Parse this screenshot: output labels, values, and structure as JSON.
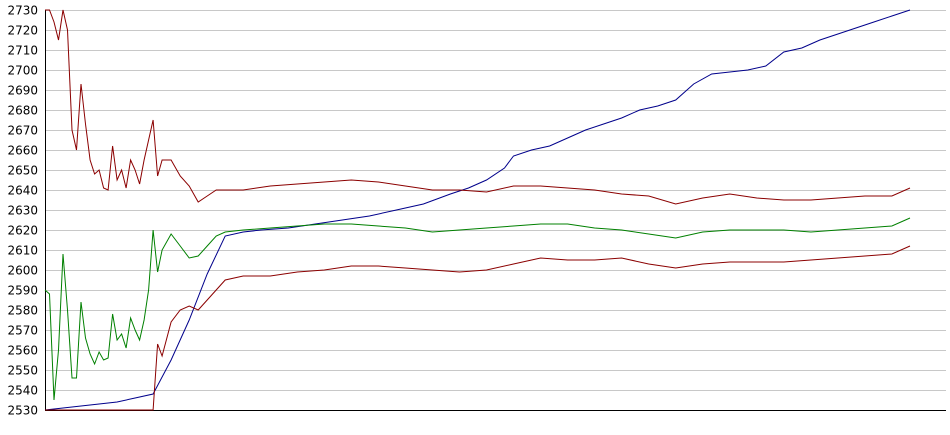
{
  "chart_data": {
    "type": "line",
    "title": "",
    "xlabel": "",
    "ylabel": "",
    "ylim": [
      2530,
      2730
    ],
    "xlim": [
      0,
      100
    ],
    "grid": true,
    "legend": "none",
    "yticks": [
      2530,
      2540,
      2550,
      2560,
      2570,
      2580,
      2590,
      2600,
      2610,
      2620,
      2630,
      2640,
      2650,
      2660,
      2670,
      2680,
      2690,
      2700,
      2710,
      2720,
      2730
    ],
    "series": [
      {
        "color": "#00008b",
        "points": [
          [
            0,
            2530
          ],
          [
            2,
            2531
          ],
          [
            4,
            2532
          ],
          [
            6,
            2533
          ],
          [
            8,
            2534
          ],
          [
            10,
            2536
          ],
          [
            12,
            2538
          ],
          [
            14,
            2555
          ],
          [
            16,
            2575
          ],
          [
            18,
            2598
          ],
          [
            20,
            2617
          ],
          [
            22,
            2619
          ],
          [
            24,
            2620
          ],
          [
            27,
            2621
          ],
          [
            30,
            2623
          ],
          [
            33,
            2625
          ],
          [
            36,
            2627
          ],
          [
            39,
            2630
          ],
          [
            42,
            2633
          ],
          [
            45,
            2638
          ],
          [
            47,
            2641
          ],
          [
            49,
            2645
          ],
          [
            51,
            2651
          ],
          [
            52,
            2657
          ],
          [
            54,
            2660
          ],
          [
            56,
            2662
          ],
          [
            58,
            2666
          ],
          [
            60,
            2670
          ],
          [
            62,
            2673
          ],
          [
            64,
            2676
          ],
          [
            66,
            2680
          ],
          [
            68,
            2682
          ],
          [
            70,
            2685
          ],
          [
            72,
            2693
          ],
          [
            74,
            2698
          ],
          [
            76,
            2699
          ],
          [
            78,
            2700
          ],
          [
            80,
            2702
          ],
          [
            82,
            2709
          ],
          [
            84,
            2711
          ],
          [
            86,
            2715
          ],
          [
            88,
            2718
          ],
          [
            90,
            2721
          ],
          [
            92,
            2724
          ],
          [
            94,
            2727
          ],
          [
            96,
            2730
          ]
        ]
      },
      {
        "color": "#8b0000",
        "points": [
          [
            0,
            2730
          ],
          [
            0.5,
            2730
          ],
          [
            1,
            2724
          ],
          [
            1.5,
            2715
          ],
          [
            2,
            2730
          ],
          [
            2.5,
            2720
          ],
          [
            3,
            2670
          ],
          [
            3.5,
            2660
          ],
          [
            4,
            2693
          ],
          [
            4.5,
            2673
          ],
          [
            5,
            2655
          ],
          [
            5.5,
            2648
          ],
          [
            6,
            2650
          ],
          [
            6.5,
            2641
          ],
          [
            7,
            2640
          ],
          [
            7.5,
            2662
          ],
          [
            8,
            2645
          ],
          [
            8.5,
            2650
          ],
          [
            9,
            2641
          ],
          [
            9.5,
            2655
          ],
          [
            10,
            2650
          ],
          [
            10.5,
            2643
          ],
          [
            11,
            2655
          ],
          [
            11.5,
            2665
          ],
          [
            12,
            2675
          ],
          [
            12.5,
            2647
          ],
          [
            13,
            2655
          ],
          [
            14,
            2655
          ],
          [
            15,
            2647
          ],
          [
            16,
            2642
          ],
          [
            17,
            2634
          ],
          [
            18,
            2637
          ],
          [
            19,
            2640
          ],
          [
            20,
            2640
          ],
          [
            22,
            2640
          ],
          [
            25,
            2642
          ],
          [
            28,
            2643
          ],
          [
            31,
            2644
          ],
          [
            34,
            2645
          ],
          [
            37,
            2644
          ],
          [
            40,
            2642
          ],
          [
            43,
            2640
          ],
          [
            46,
            2640
          ],
          [
            49,
            2639
          ],
          [
            52,
            2642
          ],
          [
            55,
            2642
          ],
          [
            58,
            2641
          ],
          [
            61,
            2640
          ],
          [
            64,
            2638
          ],
          [
            67,
            2637
          ],
          [
            70,
            2633
          ],
          [
            73,
            2636
          ],
          [
            76,
            2638
          ],
          [
            79,
            2636
          ],
          [
            82,
            2635
          ],
          [
            85,
            2635
          ],
          [
            88,
            2636
          ],
          [
            91,
            2637
          ],
          [
            94,
            2637
          ],
          [
            96,
            2641
          ]
        ]
      },
      {
        "color": "#008000",
        "points": [
          [
            0,
            2590
          ],
          [
            0.5,
            2588
          ],
          [
            1,
            2535
          ],
          [
            1.5,
            2560
          ],
          [
            2,
            2608
          ],
          [
            2.5,
            2580
          ],
          [
            3,
            2546
          ],
          [
            3.5,
            2546
          ],
          [
            4,
            2584
          ],
          [
            4.5,
            2566
          ],
          [
            5,
            2558
          ],
          [
            5.5,
            2553
          ],
          [
            6,
            2559
          ],
          [
            6.5,
            2555
          ],
          [
            7,
            2556
          ],
          [
            7.5,
            2578
          ],
          [
            8,
            2565
          ],
          [
            8.5,
            2568
          ],
          [
            9,
            2561
          ],
          [
            9.5,
            2576
          ],
          [
            10,
            2570
          ],
          [
            10.5,
            2565
          ],
          [
            11,
            2575
          ],
          [
            11.5,
            2590
          ],
          [
            12,
            2620
          ],
          [
            12.5,
            2599
          ],
          [
            13,
            2610
          ],
          [
            14,
            2618
          ],
          [
            15,
            2612
          ],
          [
            16,
            2606
          ],
          [
            17,
            2607
          ],
          [
            18,
            2612
          ],
          [
            19,
            2617
          ],
          [
            20,
            2619
          ],
          [
            22,
            2620
          ],
          [
            25,
            2621
          ],
          [
            28,
            2622
          ],
          [
            31,
            2623
          ],
          [
            34,
            2623
          ],
          [
            37,
            2622
          ],
          [
            40,
            2621
          ],
          [
            43,
            2619
          ],
          [
            46,
            2620
          ],
          [
            49,
            2621
          ],
          [
            52,
            2622
          ],
          [
            55,
            2623
          ],
          [
            58,
            2623
          ],
          [
            61,
            2621
          ],
          [
            64,
            2620
          ],
          [
            67,
            2618
          ],
          [
            70,
            2616
          ],
          [
            73,
            2619
          ],
          [
            76,
            2620
          ],
          [
            79,
            2620
          ],
          [
            82,
            2620
          ],
          [
            85,
            2619
          ],
          [
            88,
            2620
          ],
          [
            91,
            2621
          ],
          [
            94,
            2622
          ],
          [
            96,
            2626
          ]
        ]
      },
      {
        "color": "#8b0000",
        "points": [
          [
            0,
            2530
          ],
          [
            3,
            2530
          ],
          [
            6,
            2530
          ],
          [
            9,
            2530
          ],
          [
            12,
            2530
          ],
          [
            12.5,
            2563
          ],
          [
            13,
            2557
          ],
          [
            14,
            2574
          ],
          [
            15,
            2580
          ],
          [
            16,
            2582
          ],
          [
            17,
            2580
          ],
          [
            18,
            2585
          ],
          [
            19,
            2590
          ],
          [
            20,
            2595
          ],
          [
            22,
            2597
          ],
          [
            25,
            2597
          ],
          [
            28,
            2599
          ],
          [
            31,
            2600
          ],
          [
            34,
            2602
          ],
          [
            37,
            2602
          ],
          [
            40,
            2601
          ],
          [
            43,
            2600
          ],
          [
            46,
            2599
          ],
          [
            49,
            2600
          ],
          [
            52,
            2603
          ],
          [
            55,
            2606
          ],
          [
            58,
            2605
          ],
          [
            61,
            2605
          ],
          [
            64,
            2606
          ],
          [
            67,
            2603
          ],
          [
            70,
            2601
          ],
          [
            73,
            2603
          ],
          [
            76,
            2604
          ],
          [
            79,
            2604
          ],
          [
            82,
            2604
          ],
          [
            85,
            2605
          ],
          [
            88,
            2606
          ],
          [
            91,
            2607
          ],
          [
            94,
            2608
          ],
          [
            96,
            2612
          ]
        ]
      }
    ]
  }
}
